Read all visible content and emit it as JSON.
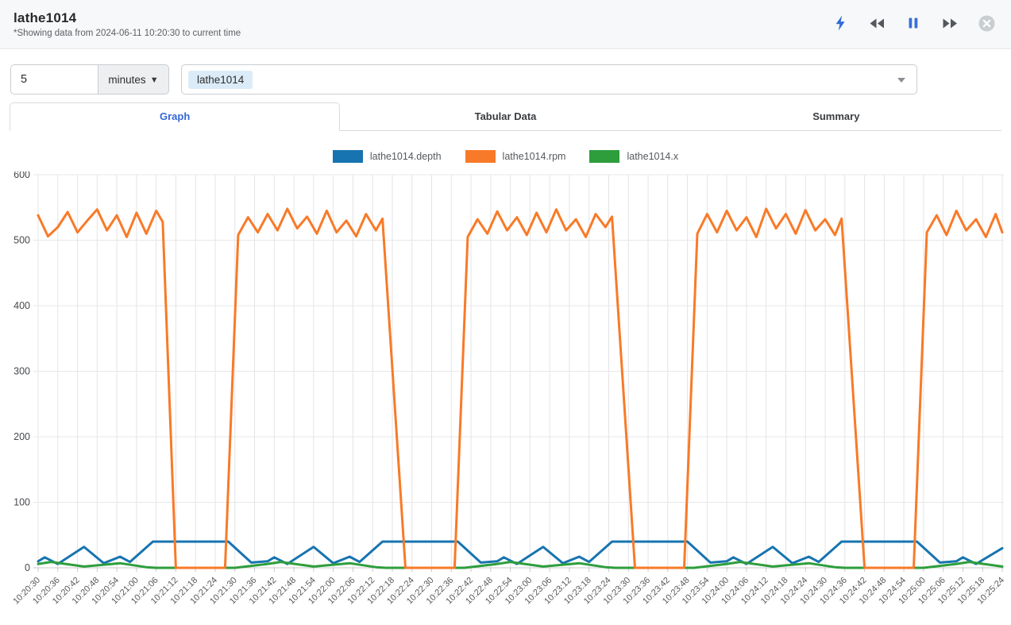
{
  "header": {
    "title": "lathe1014",
    "subtitle": "*Showing data from 2024-06-11 10:20:30 to current time",
    "controls": [
      {
        "icon": "flash-icon",
        "color": "#2e6bd9"
      },
      {
        "icon": "rewind-icon",
        "color": "#53575e"
      },
      {
        "icon": "pause-icon",
        "color": "#3a6fd8"
      },
      {
        "icon": "fast-forward-icon",
        "color": "#53575e"
      },
      {
        "icon": "close-icon",
        "color": "#c9ced3"
      }
    ]
  },
  "controls": {
    "duration_value": "5",
    "duration_unit": "minutes",
    "tag_token": "lathe1014"
  },
  "tabs": [
    {
      "label": "Graph",
      "active": true
    },
    {
      "label": "Tabular Data",
      "active": false
    },
    {
      "label": "Summary",
      "active": false
    }
  ],
  "chart_data": {
    "type": "line",
    "x_axis": {
      "unit": "time",
      "tick_interval_seconds": 6,
      "labels": [
        "10:20:30",
        "10:20:36",
        "10:20:42",
        "10:20:48",
        "10:20:54",
        "10:21:00",
        "10:21:06",
        "10:21:12",
        "10:21:18",
        "10:21:24",
        "10:21:30",
        "10:21:36",
        "10:21:42",
        "10:21:48",
        "10:21:54",
        "10:22:00",
        "10:22:06",
        "10:22:12",
        "10:22:18",
        "10:22:24",
        "10:22:30",
        "10:22:36",
        "10:22:42",
        "10:22:48",
        "10:22:54",
        "10:23:00",
        "10:23:06",
        "10:23:12",
        "10:23:18",
        "10:23:24",
        "10:23:30",
        "10:23:36",
        "10:23:42",
        "10:23:48",
        "10:23:54",
        "10:24:00",
        "10:24:06",
        "10:24:12",
        "10:24:18",
        "10:24:24",
        "10:24:30",
        "10:24:36",
        "10:24:42",
        "10:24:48",
        "10:24:54",
        "10:25:00",
        "10:25:06",
        "10:25:12",
        "10:25:18",
        "10:25:24"
      ]
    },
    "y_axis": {
      "min": 0,
      "max": 600,
      "ticks": [
        0,
        100,
        200,
        300,
        400,
        500,
        600
      ]
    },
    "grid": true,
    "legend_position": "top-center",
    "series": [
      {
        "name": "lathe1014.depth",
        "color": "#1774b0",
        "points": [
          [
            0,
            10
          ],
          [
            2,
            16
          ],
          [
            6,
            6
          ],
          [
            14,
            32
          ],
          [
            20,
            7
          ],
          [
            25,
            17
          ],
          [
            28,
            9
          ],
          [
            35,
            40
          ],
          [
            58,
            40
          ],
          [
            65,
            8
          ],
          [
            70,
            10
          ],
          [
            72,
            16
          ],
          [
            76,
            6
          ],
          [
            84,
            32
          ],
          [
            90,
            7
          ],
          [
            95,
            17
          ],
          [
            98,
            9
          ],
          [
            105,
            40
          ],
          [
            128,
            40
          ],
          [
            135,
            8
          ],
          [
            140,
            10
          ],
          [
            142,
            16
          ],
          [
            146,
            6
          ],
          [
            154,
            32
          ],
          [
            160,
            7
          ],
          [
            165,
            17
          ],
          [
            168,
            9
          ],
          [
            175,
            40
          ],
          [
            198,
            40
          ],
          [
            205,
            8
          ],
          [
            210,
            10
          ],
          [
            212,
            16
          ],
          [
            216,
            6
          ],
          [
            224,
            32
          ],
          [
            230,
            7
          ],
          [
            235,
            17
          ],
          [
            238,
            9
          ],
          [
            245,
            40
          ],
          [
            268,
            40
          ],
          [
            275,
            8
          ],
          [
            280,
            10
          ],
          [
            282,
            16
          ],
          [
            286,
            6
          ],
          [
            294,
            30
          ]
        ]
      },
      {
        "name": "lathe1014.rpm",
        "color": "#f87a28",
        "points": [
          [
            0,
            538
          ],
          [
            3,
            506
          ],
          [
            6,
            520
          ],
          [
            9,
            543
          ],
          [
            12,
            512
          ],
          [
            15,
            530
          ],
          [
            18,
            547
          ],
          [
            21,
            515
          ],
          [
            24,
            538
          ],
          [
            27,
            505
          ],
          [
            30,
            542
          ],
          [
            33,
            510
          ],
          [
            36,
            545
          ],
          [
            38,
            528
          ],
          [
            42,
            0
          ],
          [
            57,
            0
          ],
          [
            61,
            508
          ],
          [
            64,
            535
          ],
          [
            67,
            512
          ],
          [
            70,
            540
          ],
          [
            73,
            515
          ],
          [
            76,
            548
          ],
          [
            79,
            518
          ],
          [
            82,
            536
          ],
          [
            85,
            510
          ],
          [
            88,
            545
          ],
          [
            91,
            512
          ],
          [
            94,
            530
          ],
          [
            97,
            506
          ],
          [
            100,
            540
          ],
          [
            103,
            515
          ],
          [
            105,
            533
          ],
          [
            112,
            0
          ],
          [
            127,
            0
          ],
          [
            131,
            505
          ],
          [
            134,
            532
          ],
          [
            137,
            510
          ],
          [
            140,
            544
          ],
          [
            143,
            515
          ],
          [
            146,
            535
          ],
          [
            149,
            508
          ],
          [
            152,
            542
          ],
          [
            155,
            512
          ],
          [
            158,
            547
          ],
          [
            161,
            515
          ],
          [
            164,
            532
          ],
          [
            167,
            505
          ],
          [
            170,
            540
          ],
          [
            173,
            520
          ],
          [
            175,
            536
          ],
          [
            182,
            0
          ],
          [
            197,
            0
          ],
          [
            201,
            510
          ],
          [
            204,
            540
          ],
          [
            207,
            512
          ],
          [
            210,
            545
          ],
          [
            213,
            515
          ],
          [
            216,
            535
          ],
          [
            219,
            505
          ],
          [
            222,
            548
          ],
          [
            225,
            518
          ],
          [
            228,
            540
          ],
          [
            231,
            510
          ],
          [
            234,
            546
          ],
          [
            237,
            515
          ],
          [
            240,
            532
          ],
          [
            243,
            508
          ],
          [
            245,
            533
          ],
          [
            252,
            0
          ],
          [
            267,
            0
          ],
          [
            271,
            512
          ],
          [
            274,
            538
          ],
          [
            277,
            508
          ],
          [
            280,
            545
          ],
          [
            283,
            515
          ],
          [
            286,
            532
          ],
          [
            289,
            505
          ],
          [
            292,
            540
          ],
          [
            294,
            512
          ]
        ]
      },
      {
        "name": "lathe1014.x",
        "color": "#2e9e3c",
        "points": [
          [
            0,
            6
          ],
          [
            4,
            9
          ],
          [
            14,
            2
          ],
          [
            25,
            7
          ],
          [
            33,
            1
          ],
          [
            36,
            0
          ],
          [
            60,
            0
          ],
          [
            70,
            6
          ],
          [
            74,
            9
          ],
          [
            84,
            2
          ],
          [
            95,
            7
          ],
          [
            103,
            1
          ],
          [
            106,
            0
          ],
          [
            130,
            0
          ],
          [
            140,
            6
          ],
          [
            144,
            9
          ],
          [
            154,
            2
          ],
          [
            165,
            7
          ],
          [
            173,
            1
          ],
          [
            176,
            0
          ],
          [
            200,
            0
          ],
          [
            210,
            6
          ],
          [
            214,
            9
          ],
          [
            224,
            2
          ],
          [
            235,
            7
          ],
          [
            243,
            1
          ],
          [
            246,
            0
          ],
          [
            270,
            0
          ],
          [
            280,
            6
          ],
          [
            284,
            9
          ],
          [
            294,
            2
          ]
        ]
      }
    ]
  }
}
